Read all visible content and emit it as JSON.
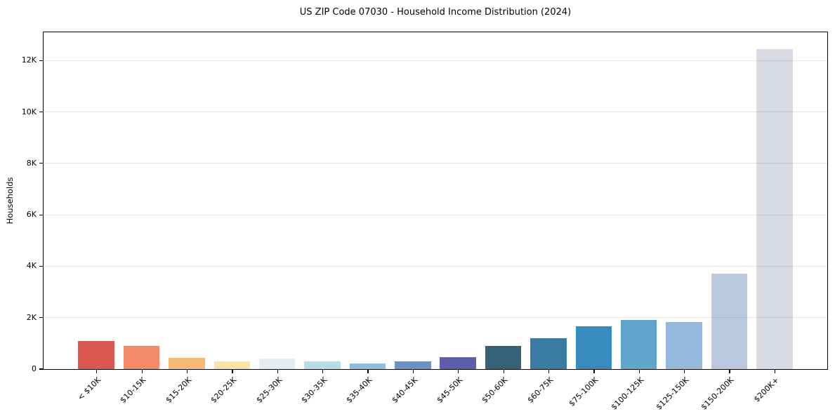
{
  "figure": {
    "title": "US ZIP Code 07030 - Household Income Distribution (2024)",
    "y_axis_title": "Households"
  },
  "chart_data": {
    "type": "bar",
    "title": "US ZIP Code 07030 - Household Income Distribution (2024)",
    "xlabel": "",
    "ylabel": "Households",
    "categories": [
      "< $10K",
      "$10-15K",
      "$15-20K",
      "$20-25K",
      "$25-30K",
      "$30-35K",
      "$35-40K",
      "$40-45K",
      "$45-50K",
      "$50-60K",
      "$60-75K",
      "$75-100K",
      "$100-125K",
      "$125-150K",
      "$150-200K",
      "$200K+"
    ],
    "values": [
      1100,
      890,
      440,
      310,
      420,
      290,
      220,
      310,
      460,
      910,
      1210,
      1670,
      1920,
      1830,
      3720,
      12450
    ],
    "bar_colors": [
      "#d95850",
      "#f58a68",
      "#f7ba74",
      "#fbe3a3",
      "#e2eef3",
      "#b7dcea",
      "#92bedd",
      "#6b92c8",
      "#5c5fad",
      "#366178",
      "#3a7ba1",
      "#378bbe",
      "#5fa5cc",
      "#93b9dc",
      "#b8c9e0",
      "#d8dae6"
    ],
    "ylim": [
      0,
      13100
    ],
    "yticks": [
      {
        "value": 0,
        "label": "0"
      },
      {
        "value": 2000,
        "label": "2K"
      },
      {
        "value": 4000,
        "label": "4K"
      },
      {
        "value": 6000,
        "label": "6K"
      },
      {
        "value": 8000,
        "label": "8K"
      },
      {
        "value": 10000,
        "label": "10K"
      },
      {
        "value": 12000,
        "label": "12K"
      }
    ],
    "grid": "horizontal",
    "legend": "none",
    "bar_width_ratio": 0.8
  },
  "style": {
    "background": "#ffffff",
    "spine_color": "#000000",
    "grid_color": "rgba(0,0,0,0.09)"
  }
}
